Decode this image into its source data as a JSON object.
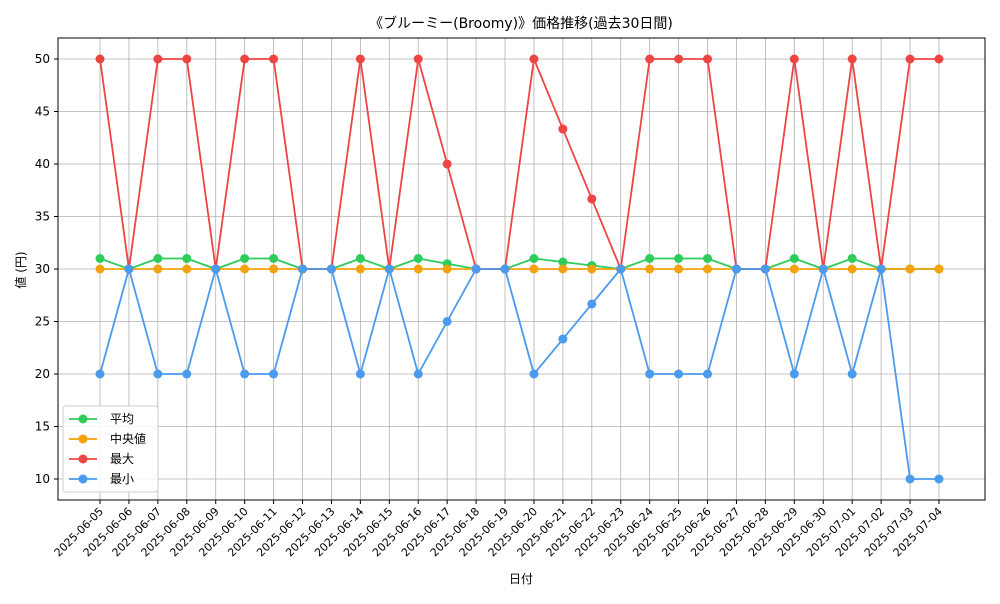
{
  "chart_data": {
    "type": "line",
    "title": "《ブルーミー(Broomy)》価格推移(過去30日間)",
    "xlabel": "日付",
    "ylabel": "値 (円)",
    "ylim": [
      8.0,
      52.0
    ],
    "yticks": [
      10,
      15,
      20,
      25,
      30,
      35,
      40,
      45,
      50
    ],
    "grid": true,
    "legend_position": "lower-left",
    "categories": [
      "2025-06-05",
      "2025-06-06",
      "2025-06-07",
      "2025-06-08",
      "2025-06-09",
      "2025-06-10",
      "2025-06-11",
      "2025-06-12",
      "2025-06-13",
      "2025-06-14",
      "2025-06-15",
      "2025-06-16",
      "2025-06-17",
      "2025-06-18",
      "2025-06-19",
      "2025-06-20",
      "2025-06-21",
      "2025-06-22",
      "2025-06-23",
      "2025-06-24",
      "2025-06-25",
      "2025-06-26",
      "2025-06-27",
      "2025-06-28",
      "2025-06-29",
      "2025-06-30",
      "2025-07-01",
      "2025-07-02",
      "2025-07-03",
      "2025-07-04"
    ],
    "series": [
      {
        "name": "平均",
        "color": "#2ecc5a",
        "values": [
          31,
          30,
          31,
          31,
          30,
          31,
          31,
          30,
          30,
          31,
          30,
          31,
          30.5,
          30,
          30,
          31,
          30.67,
          30.33,
          30,
          31,
          31,
          31,
          30,
          30,
          31,
          30,
          31,
          30,
          30,
          30
        ]
      },
      {
        "name": "中央値",
        "color": "#f5a20a",
        "values": [
          30,
          30,
          30,
          30,
          30,
          30,
          30,
          30,
          30,
          30,
          30,
          30,
          30,
          30,
          30,
          30,
          30,
          30,
          30,
          30,
          30,
          30,
          30,
          30,
          30,
          30,
          30,
          30,
          30,
          30
        ]
      },
      {
        "name": "最大",
        "color": "#ef4444",
        "values": [
          50,
          30,
          50,
          50,
          30,
          50,
          50,
          30,
          30,
          50,
          30,
          50,
          40,
          30,
          30,
          50,
          43.33,
          36.67,
          30,
          50,
          50,
          50,
          30,
          30,
          50,
          30,
          50,
          30,
          50,
          50
        ]
      },
      {
        "name": "最小",
        "color": "#4a9aee",
        "values": [
          20,
          30,
          20,
          20,
          30,
          20,
          20,
          30,
          30,
          20,
          30,
          20,
          25,
          30,
          30,
          20,
          23.33,
          26.67,
          30,
          20,
          20,
          20,
          30,
          30,
          20,
          30,
          20,
          30,
          10,
          10
        ]
      }
    ]
  }
}
